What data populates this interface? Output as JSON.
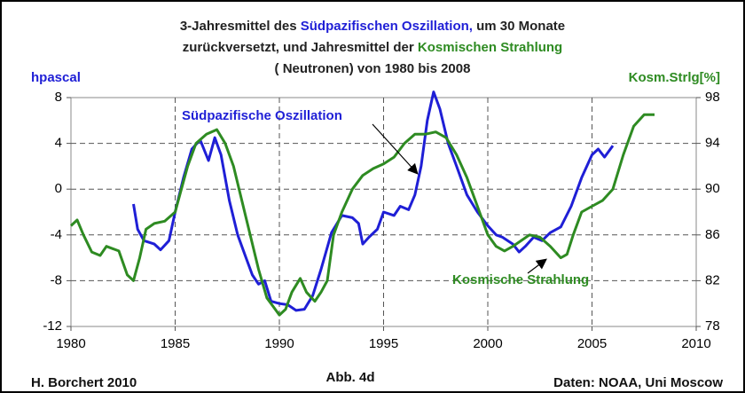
{
  "chart_data": {
    "type": "line",
    "title_lines": [
      [
        {
          "text": "3-Jahresmittel des ",
          "color": "#222222"
        },
        {
          "text": "Südpazifischen Oszillation,",
          "color": "#1f1fd6"
        },
        {
          "text": " um 30 Monate",
          "color": "#222222"
        }
      ],
      [
        {
          "text": "zurückversetzt, und Jahresmittel der ",
          "color": "#222222"
        },
        {
          "text": "Kosmischen Strahlung",
          "color": "#2e8b22"
        }
      ],
      [
        {
          "text": "( Neutronen) von 1980 bis 2008",
          "color": "#222222"
        }
      ]
    ],
    "y_label": "hpascal",
    "y2_label": "Kosm.Strlg[%]",
    "annotations": [
      "Südpazifische Oszillation",
      "Kosmische Strahlung"
    ],
    "footer_left": "H. Borchert 2010",
    "footer_center": "Abb. 4d",
    "footer_right": "Daten: NOAA, Uni Moscow",
    "xlim": [
      1980,
      2010
    ],
    "xticks": [
      1980,
      1985,
      1990,
      1995,
      2000,
      2005,
      2010
    ],
    "ylim": [
      -12,
      8
    ],
    "yticks": [
      -12,
      -8,
      -4,
      0,
      4,
      8
    ],
    "y2lim": [
      78,
      98
    ],
    "y2ticks": [
      78,
      82,
      86,
      90,
      94,
      98
    ],
    "grid": true,
    "series": [
      {
        "name": "Südpazifische Oszillation",
        "color": "#1f1fd6",
        "axis": "y",
        "x": [
          1983.0,
          1983.2,
          1983.5,
          1984,
          1984.3,
          1984.7,
          1985,
          1985.4,
          1985.8,
          1986.2,
          1986.6,
          1986.9,
          1987.2,
          1987.6,
          1988,
          1988.4,
          1988.7,
          1989,
          1989.3,
          1989.6,
          1990,
          1990.4,
          1990.8,
          1991.2,
          1991.6,
          1992,
          1992.5,
          1993,
          1993.5,
          1993.8,
          1994,
          1994.3,
          1994.7,
          1995,
          1995.5,
          1995.8,
          1996.2,
          1996.5,
          1996.8,
          1997.1,
          1997.4,
          1997.7,
          1998.1,
          1998.5,
          1999,
          1999.5,
          2000,
          2000.4,
          2000.7,
          2001.2,
          2001.5,
          2001.8,
          2002.2,
          2002.6,
          2003,
          2003.5,
          2004,
          2004.5,
          2005,
          2005.3,
          2005.6,
          2006
        ],
        "values": [
          -1.3,
          -3.5,
          -4.5,
          -4.8,
          -5.3,
          -4.5,
          -2,
          1,
          3.5,
          4.3,
          2.5,
          4.5,
          3,
          -1,
          -4,
          -6,
          -7.5,
          -8.3,
          -8,
          -9.8,
          -10,
          -10.1,
          -10.6,
          -10.5,
          -9.3,
          -7,
          -3.8,
          -2.3,
          -2.5,
          -3,
          -4.8,
          -4.2,
          -3.5,
          -2,
          -2.3,
          -1.5,
          -1.8,
          -0.5,
          2,
          6,
          8.5,
          7,
          4,
          2,
          -0.5,
          -2,
          -3.2,
          -4,
          -4.2,
          -4.8,
          -5.5,
          -5,
          -4.2,
          -4.5,
          -3.8,
          -3.3,
          -1.5,
          1,
          3,
          3.5,
          2.8,
          3.8
        ]
      },
      {
        "name": "Kosmische Strahlung",
        "color": "#2e8b22",
        "axis": "y2",
        "x": [
          1980,
          1980.3,
          1980.6,
          1981,
          1981.4,
          1981.7,
          1982,
          1982.3,
          1982.7,
          1983,
          1983.3,
          1983.6,
          1984,
          1984.5,
          1985,
          1985.3,
          1985.6,
          1986,
          1986.5,
          1987,
          1987.4,
          1987.8,
          1988.2,
          1988.6,
          1989,
          1989.4,
          1989.8,
          1990,
          1990.3,
          1990.6,
          1991,
          1991.3,
          1991.7,
          1992,
          1992.3,
          1992.6,
          1993,
          1993.5,
          1994,
          1994.5,
          1995,
          1995.5,
          1996,
          1996.5,
          1997,
          1997.5,
          1998,
          1998.5,
          1999,
          1999.5,
          2000,
          2000.4,
          2000.8,
          2001.2,
          2001.6,
          2002,
          2002.5,
          2003,
          2003.5,
          2003.8,
          2004.1,
          2004.5,
          2005,
          2005.5,
          2006,
          2006.5,
          2007,
          2007.5,
          2008
        ],
        "values": [
          86.8,
          87.3,
          86,
          84.5,
          84.2,
          85,
          84.8,
          84.6,
          82.5,
          82,
          84,
          86.5,
          87,
          87.2,
          88,
          90,
          92,
          94,
          94.8,
          95.2,
          94,
          92,
          89,
          86,
          83,
          80.5,
          79.5,
          79,
          79.5,
          81,
          82.2,
          81,
          80.2,
          81,
          82,
          86,
          88,
          90,
          91.2,
          91.8,
          92.2,
          92.8,
          94,
          94.8,
          94.8,
          95,
          94.5,
          93,
          91,
          88.5,
          86,
          85,
          84.6,
          85,
          85.5,
          86,
          85.8,
          85,
          84,
          84.3,
          86,
          88,
          88.5,
          89,
          90,
          93,
          95.5,
          96.5,
          96.5
        ]
      }
    ]
  }
}
